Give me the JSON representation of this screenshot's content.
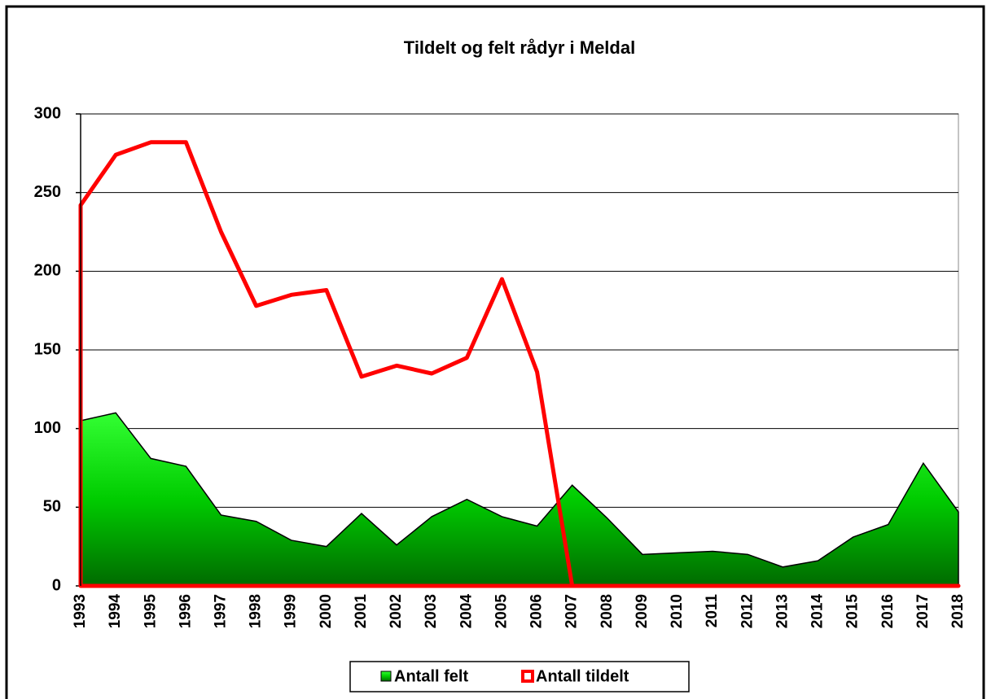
{
  "chart_data": {
    "type": "area",
    "title": "Tildelt og felt rådyr i Meldal",
    "categories": [
      "1993",
      "1994",
      "1995",
      "1996",
      "1997",
      "1998",
      "1999",
      "2000",
      "2001",
      "2002",
      "2003",
      "2004",
      "2005",
      "2006",
      "2007",
      "2008",
      "2009",
      "2010",
      "2011",
      "2012",
      "2013",
      "2014",
      "2015",
      "2016",
      "2017",
      "2018"
    ],
    "series": [
      {
        "name": "Antall felt",
        "color": "#00c800",
        "values": [
          105,
          110,
          81,
          76,
          45,
          41,
          29,
          25,
          46,
          26,
          44,
          55,
          44,
          38,
          64,
          43,
          20,
          21,
          22,
          20,
          12,
          16,
          31,
          39,
          78,
          47
        ]
      },
      {
        "name": "Antall tildelt",
        "color": "#ff0000",
        "values": [
          242,
          274,
          282,
          282,
          225,
          178,
          185,
          188,
          133,
          140,
          135,
          145,
          195,
          136,
          0,
          0,
          0,
          0,
          0,
          0,
          0,
          0,
          0,
          0,
          0,
          0
        ]
      }
    ],
    "ylim": [
      0,
      300
    ],
    "yticks": [
      0,
      50,
      100,
      150,
      200,
      250,
      300
    ],
    "grid": true,
    "legend": "bottom"
  }
}
